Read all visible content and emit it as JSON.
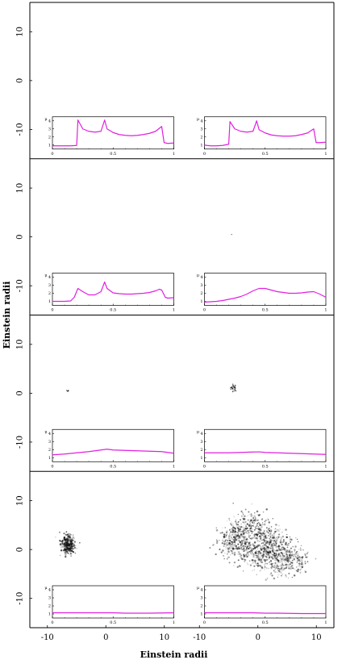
{
  "chart_data": {
    "type": "figure",
    "layout": "4 rows x 2 columns of image panels, each with an inset light-curve plot",
    "xlabel": "Einstein radii",
    "ylabel": "Einstein radii",
    "x_ticks": [
      "-10",
      "0",
      "10"
    ],
    "y_ticks": [
      "10",
      "0",
      "-10"
    ],
    "xlim": [
      -13,
      13
    ],
    "ylim": [
      -16,
      16
    ],
    "inset": {
      "x_ticks": [
        "0",
        "0.5",
        "1"
      ],
      "y_ticks": [
        "4",
        "3",
        "2",
        "1"
      ],
      "ylabel": "μ",
      "xlim": [
        0,
        1
      ],
      "ylim": [
        0.5,
        4.5
      ],
      "line_color": "#e020e0"
    },
    "panels": [
      {
        "row": 1,
        "col": 1,
        "source_shape": "none",
        "light_curve": {
          "x": [
            0,
            0.02,
            0.05,
            0.1,
            0.15,
            0.2,
            0.21,
            0.25,
            0.3,
            0.35,
            0.4,
            0.43,
            0.45,
            0.5,
            0.55,
            0.6,
            0.65,
            0.7,
            0.75,
            0.8,
            0.85,
            0.9,
            0.92,
            0.95,
            1.0
          ],
          "y": [
            0.9,
            0.9,
            0.9,
            0.9,
            0.9,
            0.95,
            4.1,
            3.0,
            2.7,
            2.6,
            2.7,
            4.1,
            3.0,
            2.55,
            2.3,
            2.2,
            2.15,
            2.2,
            2.3,
            2.45,
            2.7,
            3.3,
            1.3,
            1.2,
            1.25
          ]
        }
      },
      {
        "row": 1,
        "col": 2,
        "source_shape": "none",
        "light_curve": {
          "x": [
            0,
            0.02,
            0.05,
            0.1,
            0.15,
            0.2,
            0.21,
            0.25,
            0.3,
            0.35,
            0.4,
            0.43,
            0.45,
            0.5,
            0.55,
            0.6,
            0.65,
            0.7,
            0.75,
            0.8,
            0.85,
            0.9,
            0.92,
            0.95,
            1.0
          ],
          "y": [
            1.0,
            0.95,
            0.9,
            0.9,
            0.95,
            1.1,
            3.9,
            3.0,
            2.7,
            2.6,
            2.7,
            4.0,
            2.9,
            2.5,
            2.25,
            2.15,
            2.1,
            2.1,
            2.15,
            2.3,
            2.5,
            3.0,
            1.3,
            1.3,
            1.35
          ]
        }
      },
      {
        "row": 2,
        "col": 1,
        "source_shape": "dot",
        "light_curve": {
          "x": [
            0,
            0.05,
            0.1,
            0.15,
            0.18,
            0.21,
            0.25,
            0.3,
            0.35,
            0.4,
            0.43,
            0.45,
            0.5,
            0.55,
            0.6,
            0.65,
            0.7,
            0.75,
            0.8,
            0.85,
            0.88,
            0.9,
            0.93,
            0.95,
            1.0
          ],
          "y": [
            1.0,
            1.0,
            1.0,
            1.05,
            1.5,
            2.6,
            2.2,
            1.8,
            1.8,
            2.2,
            3.4,
            2.6,
            2.05,
            1.95,
            1.9,
            1.9,
            1.95,
            2.0,
            2.1,
            2.3,
            2.5,
            2.4,
            1.5,
            1.4,
            1.45
          ]
        }
      },
      {
        "row": 2,
        "col": 2,
        "source_shape": "dot",
        "light_curve": {
          "x": [
            0,
            0.05,
            0.1,
            0.15,
            0.2,
            0.25,
            0.3,
            0.35,
            0.4,
            0.45,
            0.5,
            0.55,
            0.6,
            0.65,
            0.7,
            0.75,
            0.8,
            0.85,
            0.9,
            0.95,
            1.0
          ],
          "y": [
            0.9,
            0.95,
            1.0,
            1.1,
            1.25,
            1.4,
            1.6,
            1.9,
            2.3,
            2.6,
            2.6,
            2.4,
            2.2,
            2.1,
            2.0,
            2.0,
            2.05,
            2.15,
            2.2,
            1.9,
            1.5
          ]
        }
      },
      {
        "row": 3,
        "col": 1,
        "source_shape": "small",
        "light_curve": {
          "x": [
            0,
            0.1,
            0.2,
            0.3,
            0.4,
            0.45,
            0.5,
            0.6,
            0.7,
            0.8,
            0.9,
            1.0
          ],
          "y": [
            1.35,
            1.45,
            1.6,
            1.75,
            1.95,
            2.05,
            1.95,
            1.9,
            1.85,
            1.8,
            1.75,
            1.55
          ]
        }
      },
      {
        "row": 3,
        "col": 2,
        "source_shape": "small",
        "light_curve": {
          "x": [
            0,
            0.1,
            0.2,
            0.3,
            0.4,
            0.45,
            0.5,
            0.6,
            0.7,
            0.8,
            0.9,
            1.0
          ],
          "y": [
            1.6,
            1.6,
            1.6,
            1.65,
            1.7,
            1.72,
            1.65,
            1.6,
            1.55,
            1.5,
            1.45,
            1.4
          ]
        }
      },
      {
        "row": 4,
        "col": 1,
        "source_shape": "medium",
        "light_curve": {
          "x": [
            0,
            0.2,
            0.4,
            0.5,
            0.6,
            0.8,
            1.0
          ],
          "y": [
            1.15,
            1.15,
            1.15,
            1.15,
            1.1,
            1.1,
            1.15
          ]
        }
      },
      {
        "row": 4,
        "col": 2,
        "source_shape": "large",
        "light_curve": {
          "x": [
            0,
            0.2,
            0.4,
            0.5,
            0.6,
            0.8,
            1.0
          ],
          "y": [
            1.15,
            1.15,
            1.15,
            1.1,
            1.1,
            1.05,
            1.05
          ]
        }
      }
    ]
  }
}
